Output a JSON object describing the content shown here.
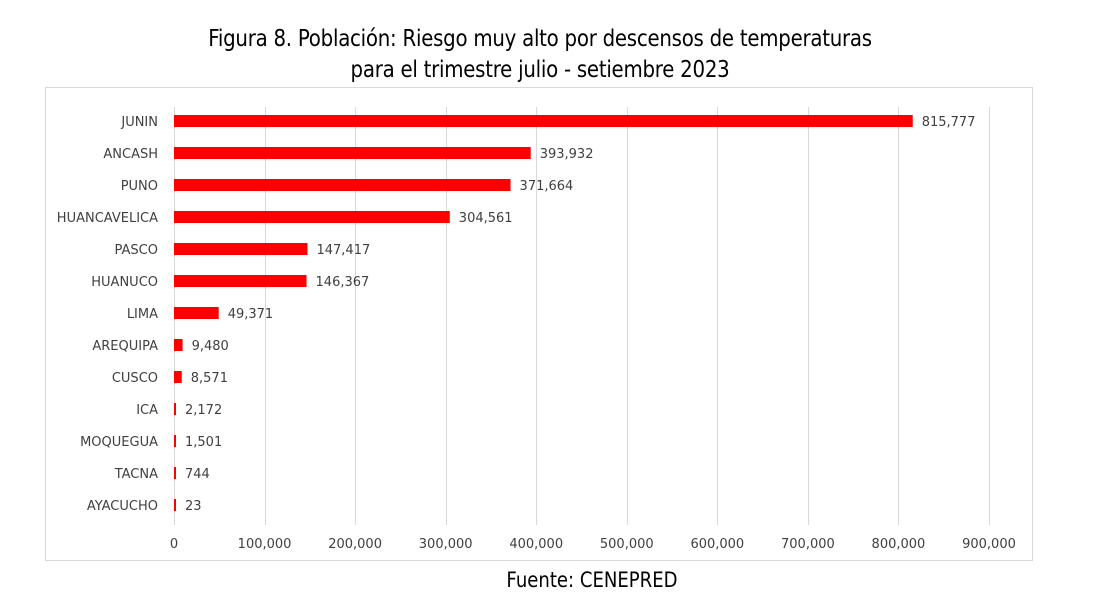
{
  "chart_data": {
    "type": "bar",
    "orientation": "horizontal",
    "title": "Figura 8. Población: Riesgo muy alto por descensos de temperaturas para el trimestre julio - setiembre 2023",
    "title_lines": [
      "Figura 8. Población: Riesgo muy alto por descensos de temperaturas",
      "para el trimestre julio - setiembre 2023"
    ],
    "categories": [
      "JUNIN",
      "ANCASH",
      "PUNO",
      "HUANCAVELICA",
      "PASCO",
      "HUANUCO",
      "LIMA",
      "AREQUIPA",
      "CUSCO",
      "ICA",
      "MOQUEGUA",
      "TACNA",
      "AYACUCHO"
    ],
    "values": [
      815777,
      393932,
      371664,
      304561,
      147417,
      146367,
      49371,
      9480,
      8571,
      2172,
      1501,
      744,
      23
    ],
    "data_labels": [
      "815,777",
      "393,932",
      "371,664",
      "304,561",
      "147,417",
      "146,367",
      "49,371",
      "9,480",
      "8,571",
      "2,172",
      "1,501",
      "744",
      "23"
    ],
    "x_ticks": [
      0,
      100000,
      200000,
      300000,
      400000,
      500000,
      600000,
      700000,
      800000,
      900000
    ],
    "x_tick_labels": [
      "0",
      "100,000",
      "200,000",
      "300,000",
      "400,000",
      "500,000",
      "600,000",
      "700,000",
      "800,000",
      "900,000"
    ],
    "xlim": [
      0,
      900000
    ],
    "xlabel": "",
    "ylabel": "",
    "grid": true,
    "legend": "none",
    "bar_color": "#ff0000",
    "grid_color": "#d9d9d9",
    "source": "Fuente: CENEPRED"
  }
}
